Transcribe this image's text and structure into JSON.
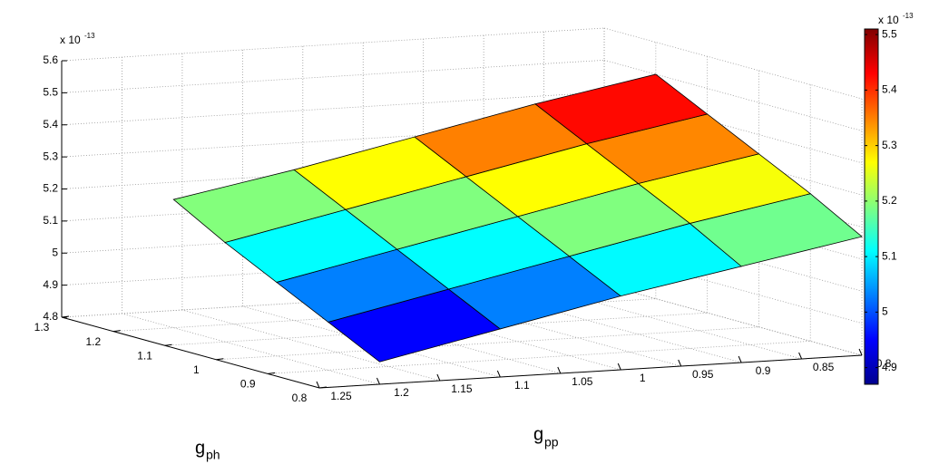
{
  "chart_data": {
    "type": "surface",
    "x": [
      1.2,
      1.1,
      1,
      0.9,
      0.8
    ],
    "y": [
      0.8,
      0.9,
      1,
      1.1,
      1.2
    ],
    "z": [
      [
        4.87,
        4.95,
        5.03,
        5.1,
        5.17
      ],
      [
        4.95,
        5.03,
        5.11,
        5.19,
        5.26
      ],
      [
        5.03,
        5.11,
        5.19,
        5.27,
        5.34
      ],
      [
        5.11,
        5.19,
        5.27,
        5.35,
        5.42
      ],
      [
        5.2,
        5.27,
        5.35,
        5.43,
        5.5
      ]
    ],
    "xlim": [
      0.8,
      1.25
    ],
    "ylim": [
      0.8,
      1.3
    ],
    "zlim": [
      4.8,
      5.6
    ],
    "xticks": [
      0.8,
      0.85,
      0.9,
      0.95,
      1,
      1.05,
      1.1,
      1.15,
      1.2,
      1.25
    ],
    "yticks": [
      0.8,
      0.9,
      1,
      1.1,
      1.2,
      1.3
    ],
    "zticks": [
      4.8,
      4.9,
      5,
      5.1,
      5.2,
      5.3,
      5.4,
      5.5,
      5.6
    ],
    "xlabel": [
      "g",
      "pp"
    ],
    "ylabel": [
      "g",
      "ph"
    ],
    "zexponent": [
      "x 10",
      "-13"
    ],
    "colormap": "jet",
    "clim": [
      4.87,
      5.51
    ],
    "cticks": [
      4.9,
      5,
      5.1,
      5.2,
      5.3,
      5.4,
      5.5
    ],
    "cexponent": [
      "x 10",
      "-13"
    ],
    "grid": true
  }
}
